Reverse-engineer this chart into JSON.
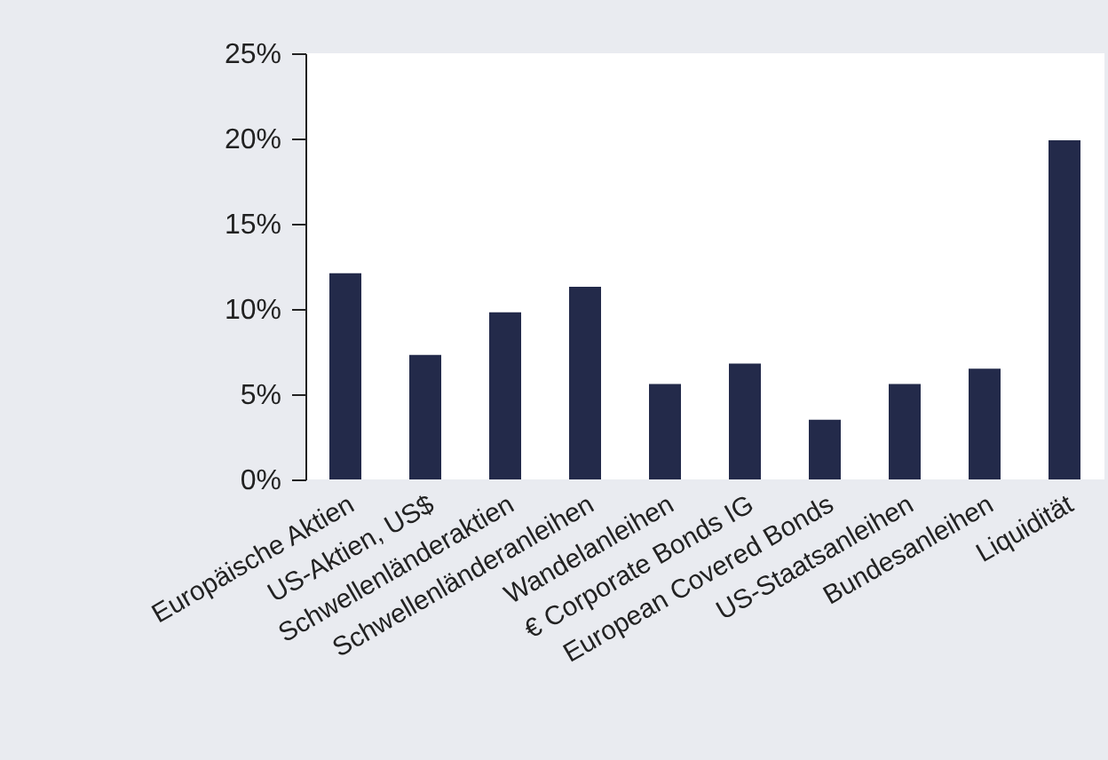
{
  "chart_data": {
    "type": "bar",
    "categories": [
      "Europäische Aktien",
      "US-Aktien, US$",
      "Schwellenländeraktien",
      "Schwellenländeranleihen",
      "Wandelanleihen",
      "€ Corporate Bonds IG",
      "European Covered Bonds",
      "US-Staatsanleihen",
      "Bundesanleihen",
      "Liquidität"
    ],
    "values": [
      12.1,
      7.3,
      9.8,
      11.3,
      5.6,
      6.8,
      3.5,
      5.6,
      6.5,
      19.9
    ],
    "color": "#232a4a",
    "ylim": [
      0,
      25
    ],
    "yticks": [
      {
        "value": 0,
        "label": "0%"
      },
      {
        "value": 5,
        "label": "5%"
      },
      {
        "value": 10,
        "label": "10%"
      },
      {
        "value": 15,
        "label": "15%"
      },
      {
        "value": 20,
        "label": "20%"
      },
      {
        "value": 25,
        "label": "25%"
      }
    ]
  }
}
